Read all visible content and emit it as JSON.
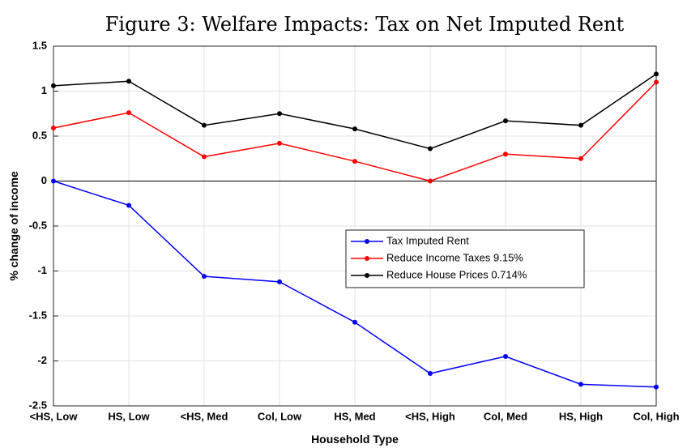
{
  "chart_data": {
    "type": "line",
    "title": "Figure 3: Welfare Impacts: Tax on Net Imputed Rent",
    "xlabel": "Household Type",
    "ylabel": "% change of income",
    "categories": [
      "<HS, Low",
      "HS, Low",
      "<HS, Med",
      "Col, Low",
      "HS, Med",
      "<HS, High",
      "Col, Med",
      "HS, High",
      "Col, High"
    ],
    "series": [
      {
        "name": "Tax Imputed Rent",
        "color": "#0000ff",
        "values": [
          0,
          -0.27,
          -1.06,
          -1.12,
          -1.57,
          -2.14,
          -1.95,
          -2.26,
          -2.29
        ]
      },
      {
        "name": "Reduce Income Taxes 9.15%",
        "color": "#ff0000",
        "values": [
          0.59,
          0.76,
          0.27,
          0.42,
          0.22,
          0,
          0.3,
          0.25,
          1.1
        ]
      },
      {
        "name": "Reduce House Prices 0.714%",
        "color": "#000000",
        "values": [
          1.06,
          1.11,
          0.62,
          0.75,
          0.58,
          0.36,
          0.67,
          0.62,
          1.19
        ]
      }
    ],
    "ylim": [
      -2.5,
      1.5
    ],
    "yticks": [
      -2.5,
      -2,
      -1.5,
      -1,
      -0.5,
      0,
      0.5,
      1,
      1.5
    ],
    "grid": true,
    "zero_line": true
  }
}
